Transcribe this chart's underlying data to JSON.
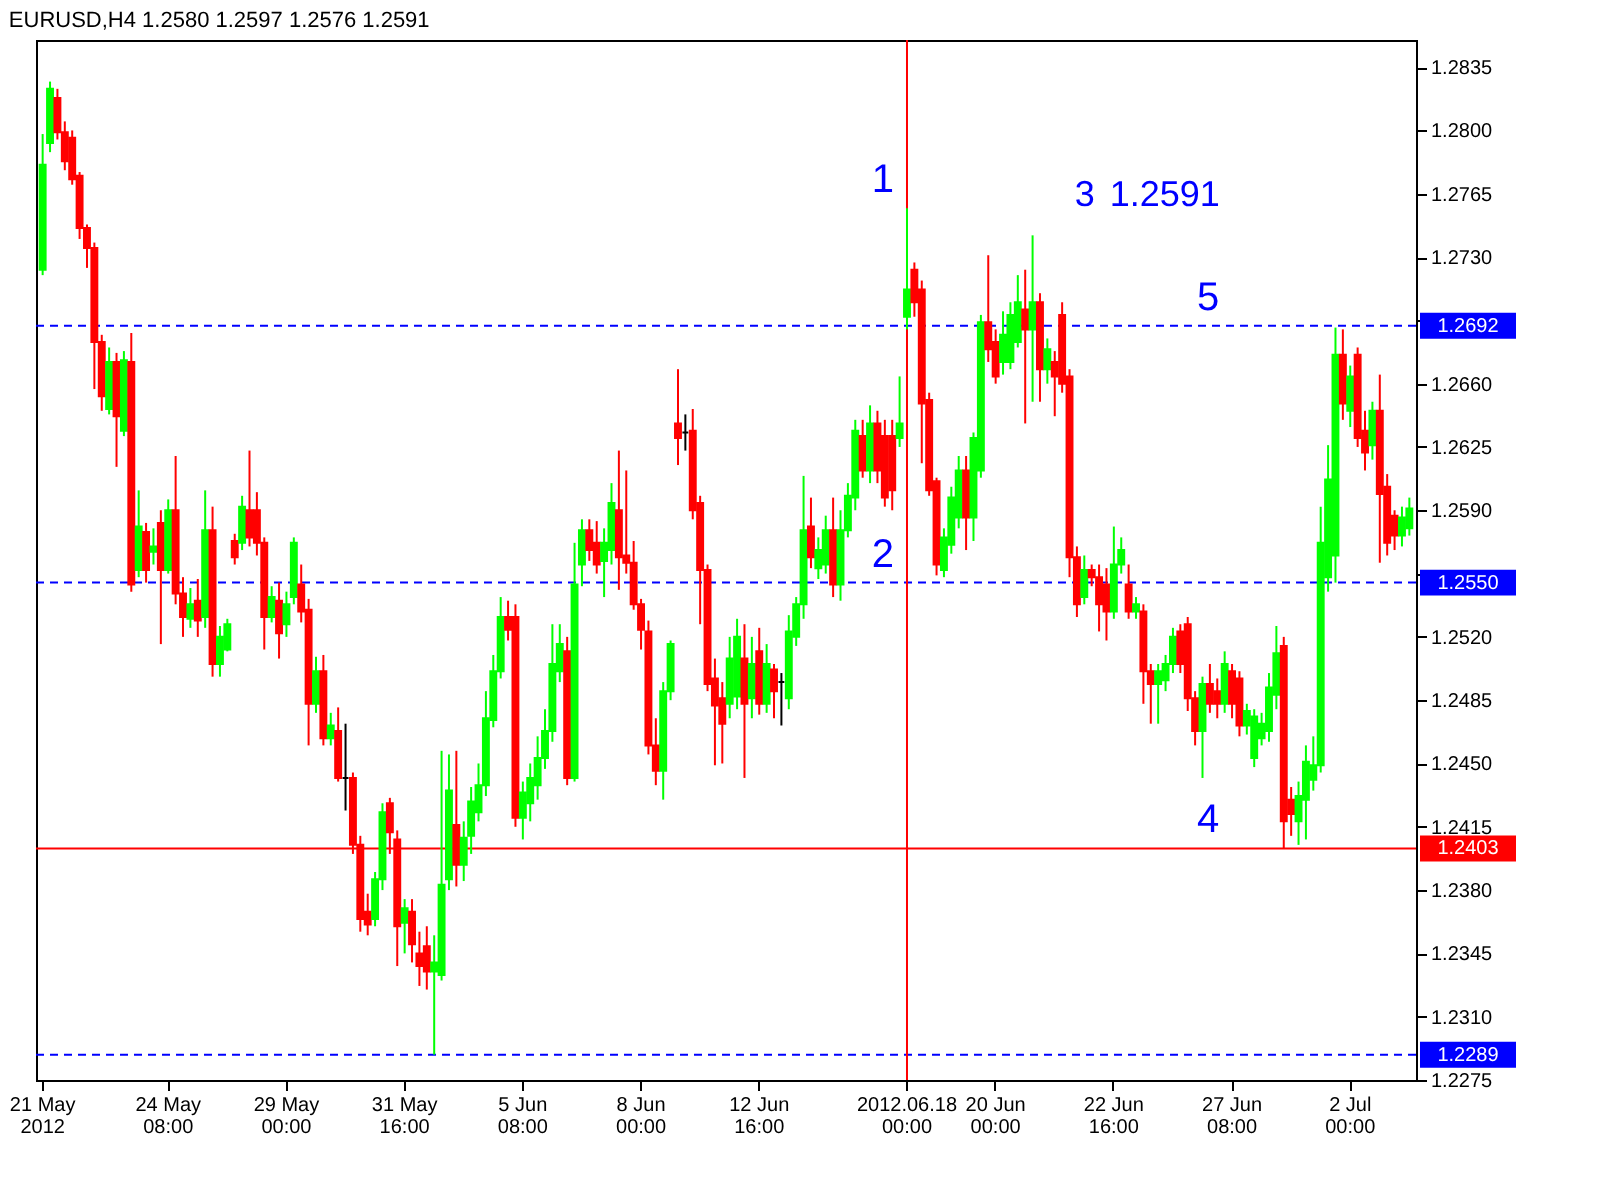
{
  "chart_data": {
    "type": "candlestick",
    "title": "EURUSD,H4 1.2580 1.2597 1.2576 1.2591",
    "categories": [
      "21 May 2012",
      null,
      null,
      null,
      null,
      null,
      null,
      null,
      null,
      null,
      null,
      null,
      null,
      null,
      null,
      null,
      null,
      "24 May 08:00",
      null,
      null,
      null,
      null,
      null,
      null,
      null,
      null,
      null,
      null,
      null,
      null,
      null,
      null,
      null,
      "29 May 00:00",
      null,
      null,
      null,
      null,
      null,
      null,
      null,
      null,
      null,
      null,
      null,
      null,
      null,
      null,
      null,
      "31 May 16:00",
      null,
      null,
      null,
      null,
      null,
      null,
      null,
      null,
      null,
      null,
      null,
      null,
      null,
      null,
      null,
      "5 Jun 08:00",
      null,
      null,
      null,
      null,
      null,
      null,
      null,
      null,
      null,
      null,
      null,
      null,
      null,
      null,
      null,
      "8 Jun 00:00",
      null,
      null,
      null,
      null,
      null,
      null,
      null,
      null,
      null,
      null,
      null,
      null,
      null,
      null,
      null,
      "12 Jun 16:00",
      null,
      null,
      null,
      null,
      null,
      null,
      null,
      null,
      null,
      null,
      null,
      null,
      null,
      null,
      null,
      null,
      null,
      null,
      null,
      "2012.06.18 00:00",
      null,
      null,
      null,
      null,
      null,
      null,
      null,
      null,
      null,
      null,
      null,
      "20 Jun 00:00",
      null,
      null,
      null,
      null,
      null,
      null,
      null,
      null,
      null,
      null,
      null,
      null,
      null,
      null,
      null,
      "22 Jun 16:00",
      null,
      null,
      null,
      null,
      null,
      null,
      null,
      null,
      null,
      null,
      null,
      null,
      null,
      null,
      null,
      "27 Jun 08:00",
      null,
      null,
      null,
      null,
      null,
      null,
      null,
      null,
      null,
      null,
      null,
      null,
      null,
      null,
      null,
      "2 Jul 00:00",
      null,
      null,
      null,
      null,
      null,
      null,
      null,
      null
    ],
    "ohlc": [
      [
        1.2723,
        1.2798,
        1.272,
        1.2781
      ],
      [
        1.2793,
        1.2827,
        1.2788,
        1.2823
      ],
      [
        1.2818,
        1.2823,
        1.2795,
        1.2799
      ],
      [
        1.2799,
        1.2805,
        1.2778,
        1.2783
      ],
      [
        1.2796,
        1.28,
        1.277,
        1.2773
      ],
      [
        1.2775,
        1.2777,
        1.274,
        1.2746
      ],
      [
        1.2746,
        1.2748,
        1.2724,
        1.2735
      ],
      [
        1.2735,
        1.2738,
        1.2657,
        1.2683
      ],
      [
        1.2683,
        1.2687,
        1.2645,
        1.2653
      ],
      [
        1.2646,
        1.268,
        1.2643,
        1.2672
      ],
      [
        1.2672,
        1.2677,
        1.2614,
        1.2642
      ],
      [
        1.2634,
        1.2678,
        1.2631,
        1.2673
      ],
      [
        1.2672,
        1.2688,
        1.2545,
        1.2549
      ],
      [
        1.2557,
        1.2601,
        1.2553,
        1.2581
      ],
      [
        1.2578,
        1.2583,
        1.255,
        1.2557
      ],
      [
        1.2567,
        1.258,
        1.256,
        1.257
      ],
      [
        1.2583,
        1.259,
        1.2516,
        1.2557
      ],
      [
        1.2557,
        1.2596,
        1.2555,
        1.259
      ],
      [
        1.259,
        1.262,
        1.2538,
        1.2544
      ],
      [
        1.2544,
        1.2553,
        1.252,
        1.2531
      ],
      [
        1.253,
        1.2547,
        1.2525,
        1.2538
      ],
      [
        1.254,
        1.2552,
        1.252,
        1.2529
      ],
      [
        1.2531,
        1.2601,
        1.2525,
        1.2579
      ],
      [
        1.2579,
        1.2592,
        1.2498,
        1.2505
      ],
      [
        1.2505,
        1.2526,
        1.2498,
        1.252
      ],
      [
        1.2513,
        1.253,
        1.2512,
        1.2527
      ],
      [
        1.2573,
        1.2577,
        1.256,
        1.2564
      ],
      [
        1.2572,
        1.2598,
        1.2568,
        1.2592
      ],
      [
        1.259,
        1.2623,
        1.257,
        1.2575
      ],
      [
        1.259,
        1.26,
        1.2565,
        1.2572
      ],
      [
        1.2572,
        1.2575,
        1.2513,
        1.2531
      ],
      [
        1.2531,
        1.2548,
        1.2528,
        1.2542
      ],
      [
        1.254,
        1.255,
        1.2508,
        1.2522
      ],
      [
        1.2527,
        1.2545,
        1.252,
        1.2538
      ],
      [
        1.2542,
        1.2575,
        1.2538,
        1.2572
      ],
      [
        1.2549,
        1.256,
        1.2528,
        1.2534
      ],
      [
        1.2535,
        1.2541,
        1.246,
        1.2483
      ],
      [
        1.2483,
        1.2509,
        1.2478,
        1.2501
      ],
      [
        1.2501,
        1.251,
        1.246,
        1.2464
      ],
      [
        1.2464,
        1.2478,
        1.246,
        1.2471
      ],
      [
        1.2468,
        1.2481,
        1.244,
        1.2442
      ],
      [
        1.2442,
        1.2472,
        1.2424,
        1.2442
      ],
      [
        1.2442,
        1.2445,
        1.24,
        1.2405
      ],
      [
        1.2405,
        1.241,
        1.2357,
        1.2364
      ],
      [
        1.2368,
        1.2378,
        1.2355,
        1.2361
      ],
      [
        1.2364,
        1.239,
        1.236,
        1.2386
      ],
      [
        1.2386,
        1.2428,
        1.238,
        1.2423
      ],
      [
        1.2428,
        1.2431,
        1.24,
        1.2412
      ],
      [
        1.2408,
        1.2413,
        1.2338,
        1.236
      ],
      [
        1.2362,
        1.2375,
        1.2345,
        1.237
      ],
      [
        1.2368,
        1.2375,
        1.234,
        1.235
      ],
      [
        1.2345,
        1.2357,
        1.2327,
        1.2338
      ],
      [
        1.2349,
        1.236,
        1.2325,
        1.2335
      ],
      [
        1.2335,
        1.2355,
        1.2289,
        1.234
      ],
      [
        1.2333,
        1.2457,
        1.233,
        1.2383
      ],
      [
        1.2386,
        1.2455,
        1.238,
        1.2435
      ],
      [
        1.2416,
        1.2457,
        1.2382,
        1.2394
      ],
      [
        1.2394,
        1.2418,
        1.2385,
        1.2409
      ],
      [
        1.241,
        1.2437,
        1.24,
        1.2429
      ],
      [
        1.2423,
        1.245,
        1.2418,
        1.2438
      ],
      [
        1.2438,
        1.249,
        1.2432,
        1.2475
      ],
      [
        1.2474,
        1.251,
        1.247,
        1.2501
      ],
      [
        1.2501,
        1.2542,
        1.2497,
        1.2531
      ],
      [
        1.2531,
        1.254,
        1.2518,
        1.2524
      ],
      [
        1.2531,
        1.2538,
        1.2415,
        1.242
      ],
      [
        1.242,
        1.244,
        1.2408,
        1.2434
      ],
      [
        1.2428,
        1.245,
        1.2418,
        1.2442
      ],
      [
        1.2438,
        1.2465,
        1.243,
        1.2453
      ],
      [
        1.2453,
        1.248,
        1.2447,
        1.2468
      ],
      [
        1.2468,
        1.2527,
        1.2462,
        1.2505
      ],
      [
        1.2501,
        1.2527,
        1.2495,
        1.2516
      ],
      [
        1.2512,
        1.252,
        1.2438,
        1.2442
      ],
      [
        1.2442,
        1.2572,
        1.244,
        1.2549
      ],
      [
        1.256,
        1.2585,
        1.2548,
        1.2579
      ],
      [
        1.2579,
        1.2585,
        1.2562,
        1.2568
      ],
      [
        1.2572,
        1.2584,
        1.2555,
        1.256
      ],
      [
        1.2562,
        1.258,
        1.2542,
        1.2572
      ],
      [
        1.2568,
        1.2605,
        1.256,
        1.2594
      ],
      [
        1.259,
        1.2623,
        1.2546,
        1.2564
      ],
      [
        1.2565,
        1.2612,
        1.2555,
        1.2561
      ],
      [
        1.2561,
        1.2573,
        1.2535,
        1.2538
      ],
      [
        1.2538,
        1.2541,
        1.2513,
        1.2524
      ],
      [
        1.2523,
        1.2529,
        1.2455,
        1.246
      ],
      [
        1.246,
        1.2475,
        1.2438,
        1.2446
      ],
      [
        1.2446,
        1.2495,
        1.243,
        1.249
      ],
      [
        1.249,
        1.2518,
        1.2485,
        1.2516
      ],
      [
        1.2638,
        1.2668,
        1.2615,
        1.263
      ],
      [
        1.2633,
        1.2643,
        1.2623,
        1.2633
      ],
      [
        1.2634,
        1.2646,
        1.2585,
        1.259
      ],
      [
        1.2594,
        1.2598,
        1.2527,
        1.2557
      ],
      [
        1.2557,
        1.256,
        1.249,
        1.2494
      ],
      [
        1.2497,
        1.2508,
        1.2449,
        1.2482
      ],
      [
        1.2486,
        1.2495,
        1.245,
        1.2472
      ],
      [
        1.2483,
        1.252,
        1.2475,
        1.2508
      ],
      [
        1.2487,
        1.253,
        1.248,
        1.252
      ],
      [
        1.2508,
        1.2527,
        1.2442,
        1.2483
      ],
      [
        1.2486,
        1.252,
        1.2475,
        1.2505
      ],
      [
        1.2512,
        1.2525,
        1.2477,
        1.2483
      ],
      [
        1.2483,
        1.2516,
        1.2478,
        1.2505
      ],
      [
        1.2502,
        1.2505,
        1.2475,
        1.249
      ],
      [
        1.2495,
        1.25,
        1.2471,
        1.2495
      ],
      [
        1.2486,
        1.2532,
        1.248,
        1.2523
      ],
      [
        1.252,
        1.2542,
        1.2515,
        1.2538
      ],
      [
        1.2538,
        1.2609,
        1.253,
        1.2579
      ],
      [
        1.2581,
        1.2597,
        1.2558,
        1.2564
      ],
      [
        1.2558,
        1.2575,
        1.2552,
        1.2568
      ],
      [
        1.256,
        1.2587,
        1.2555,
        1.2579
      ],
      [
        1.2579,
        1.2597,
        1.2542,
        1.2549
      ],
      [
        1.2549,
        1.259,
        1.254,
        1.2579
      ],
      [
        1.2579,
        1.2605,
        1.2575,
        1.2598
      ],
      [
        1.2597,
        1.264,
        1.259,
        1.2634
      ],
      [
        1.2631,
        1.264,
        1.2608,
        1.2612
      ],
      [
        1.2612,
        1.2648,
        1.2605,
        1.2638
      ],
      [
        1.2638,
        1.2645,
        1.2605,
        1.2612
      ],
      [
        1.2631,
        1.264,
        1.2592,
        1.2597
      ],
      [
        1.2631,
        1.264,
        1.259,
        1.2601
      ],
      [
        1.263,
        1.2664,
        1.2625,
        1.2638
      ],
      [
        1.2697,
        1.2757,
        1.269,
        1.2712
      ],
      [
        1.2723,
        1.2727,
        1.2697,
        1.2705
      ],
      [
        1.2712,
        1.2717,
        1.2616,
        1.2649
      ],
      [
        1.2651,
        1.2655,
        1.2598,
        1.2601
      ],
      [
        1.2606,
        1.2608,
        1.2554,
        1.256
      ],
      [
        1.2557,
        1.258,
        1.2553,
        1.2575
      ],
      [
        1.2571,
        1.2603,
        1.2566,
        1.2597
      ],
      [
        1.2586,
        1.262,
        1.258,
        1.2612
      ],
      [
        1.2612,
        1.262,
        1.2568,
        1.2586
      ],
      [
        1.2586,
        1.2633,
        1.2573,
        1.263
      ],
      [
        1.2612,
        1.2698,
        1.2608,
        1.2694
      ],
      [
        1.2694,
        1.2731,
        1.2672,
        1.2679
      ],
      [
        1.2683,
        1.269,
        1.266,
        1.2664
      ],
      [
        1.2672,
        1.27,
        1.2665,
        1.2687
      ],
      [
        1.2672,
        1.2705,
        1.2668,
        1.2698
      ],
      [
        1.2683,
        1.272,
        1.268,
        1.2705
      ],
      [
        1.2701,
        1.2723,
        1.2638,
        1.269
      ],
      [
        1.269,
        1.2742,
        1.265,
        1.2705
      ],
      [
        1.2705,
        1.271,
        1.265,
        1.2668
      ],
      [
        1.2668,
        1.2685,
        1.266,
        1.2679
      ],
      [
        1.2672,
        1.2678,
        1.2642,
        1.2664
      ],
      [
        1.2698,
        1.2705,
        1.2655,
        1.266
      ],
      [
        1.2664,
        1.2668,
        1.2553,
        1.2564
      ],
      [
        1.2564,
        1.257,
        1.2531,
        1.2538
      ],
      [
        1.2542,
        1.2565,
        1.2538,
        1.2557
      ],
      [
        1.2557,
        1.256,
        1.2548,
        1.2553
      ],
      [
        1.2553,
        1.256,
        1.2523,
        1.2538
      ],
      [
        1.2549,
        1.2558,
        1.2518,
        1.2534
      ],
      [
        1.2534,
        1.2581,
        1.253,
        1.256
      ],
      [
        1.256,
        1.2575,
        1.2555,
        1.2568
      ],
      [
        1.2549,
        1.256,
        1.253,
        1.2534
      ],
      [
        1.2534,
        1.2542,
        1.253,
        1.2538
      ],
      [
        1.2534,
        1.2538,
        1.2483,
        1.2501
      ],
      [
        1.2501,
        1.2505,
        1.2472,
        1.2494
      ],
      [
        1.2494,
        1.2505,
        1.2472,
        1.2501
      ],
      [
        1.2496,
        1.251,
        1.249,
        1.2505
      ],
      [
        1.2505,
        1.2525,
        1.25,
        1.252
      ],
      [
        1.2523,
        1.2527,
        1.25,
        1.2505
      ],
      [
        1.2527,
        1.2531,
        1.2479,
        1.2486
      ],
      [
        1.2486,
        1.249,
        1.246,
        1.2468
      ],
      [
        1.2468,
        1.2498,
        1.2442,
        1.2494
      ],
      [
        1.2494,
        1.2505,
        1.2478,
        1.2483
      ],
      [
        1.249,
        1.2497,
        1.2475,
        1.2483
      ],
      [
        1.2483,
        1.2512,
        1.2478,
        1.2505
      ],
      [
        1.2501,
        1.2505,
        1.2475,
        1.2483
      ],
      [
        1.2497,
        1.2501,
        1.2465,
        1.2471
      ],
      [
        1.2471,
        1.2483,
        1.2466,
        1.2479
      ],
      [
        1.2453,
        1.248,
        1.2448,
        1.2476
      ],
      [
        1.2464,
        1.2478,
        1.246,
        1.2472
      ],
      [
        1.2468,
        1.25,
        1.2462,
        1.2492
      ],
      [
        1.2488,
        1.2526,
        1.248,
        1.2511
      ],
      [
        1.2515,
        1.252,
        1.2403,
        1.2418
      ],
      [
        1.243,
        1.2437,
        1.241,
        1.2422
      ],
      [
        1.2418,
        1.244,
        1.2405,
        1.2432
      ],
      [
        1.243,
        1.246,
        1.2408,
        1.2451
      ],
      [
        1.2441,
        1.2465,
        1.2435,
        1.2449
      ],
      [
        1.2449,
        1.2592,
        1.2445,
        1.2572
      ],
      [
        1.2553,
        1.2626,
        1.2545,
        1.2607
      ],
      [
        1.2565,
        1.2691,
        1.255,
        1.2676
      ],
      [
        1.2676,
        1.269,
        1.264,
        1.2649
      ],
      [
        1.2645,
        1.267,
        1.2636,
        1.2664
      ],
      [
        1.2676,
        1.268,
        1.2625,
        1.263
      ],
      [
        1.2634,
        1.2645,
        1.2612,
        1.2622
      ],
      [
        1.2626,
        1.265,
        1.2618,
        1.2645
      ],
      [
        1.2645,
        1.2665,
        1.2561,
        1.2599
      ],
      [
        1.2603,
        1.261,
        1.2565,
        1.2572
      ],
      [
        1.2587,
        1.259,
        1.2568,
        1.2576
      ],
      [
        1.2576,
        1.2592,
        1.257,
        1.2586
      ],
      [
        1.258,
        1.2597,
        1.2576,
        1.2591
      ]
    ],
    "colors": [
      "#00ff00",
      "#00ff00",
      "#ff0000",
      "#ff0000",
      "#ff0000",
      "#ff0000",
      "#ff0000",
      "#ff0000",
      "#ff0000",
      "#00ff00",
      "#ff0000",
      "#00ff00",
      "#ff0000",
      "#00ff00",
      "#ff0000",
      "#00ff00",
      "#ff0000",
      "#00ff00",
      "#ff0000",
      "#ff0000",
      "#00ff00",
      "#ff0000",
      "#00ff00",
      "#ff0000",
      "#00ff00",
      "#00ff00",
      "#ff0000",
      "#00ff00",
      "#ff0000",
      "#ff0000",
      "#ff0000",
      "#00ff00",
      "#ff0000",
      "#00ff00",
      "#00ff00",
      "#ff0000",
      "#ff0000",
      "#00ff00",
      "#ff0000",
      "#00ff00",
      "#ff0000",
      "#000000",
      "#ff0000",
      "#ff0000",
      "#ff0000",
      "#00ff00",
      "#00ff00",
      "#ff0000",
      "#ff0000",
      "#00ff00",
      "#ff0000",
      "#ff0000",
      "#ff0000",
      "#00ff00",
      "#00ff00",
      "#00ff00",
      "#ff0000",
      "#00ff00",
      "#00ff00",
      "#00ff00",
      "#00ff00",
      "#00ff00",
      "#00ff00",
      "#ff0000",
      "#ff0000",
      "#00ff00",
      "#00ff00",
      "#00ff00",
      "#00ff00",
      "#00ff00",
      "#00ff00",
      "#ff0000",
      "#00ff00",
      "#00ff00",
      "#ff0000",
      "#ff0000",
      "#00ff00",
      "#00ff00",
      "#ff0000",
      "#ff0000",
      "#ff0000",
      "#ff0000",
      "#ff0000",
      "#ff0000",
      "#00ff00",
      "#00ff00",
      "#ff0000",
      "#000000",
      "#ff0000",
      "#ff0000",
      "#ff0000",
      "#ff0000",
      "#ff0000",
      "#00ff00",
      "#00ff00",
      "#ff0000",
      "#00ff00",
      "#ff0000",
      "#00ff00",
      "#ff0000",
      "#000000",
      "#00ff00",
      "#00ff00",
      "#00ff00",
      "#ff0000",
      "#00ff00",
      "#00ff00",
      "#ff0000",
      "#00ff00",
      "#00ff00",
      "#00ff00",
      "#ff0000",
      "#00ff00",
      "#ff0000",
      "#ff0000",
      "#ff0000",
      "#00ff00",
      "#00ff00",
      "#ff0000",
      "#ff0000",
      "#ff0000",
      "#ff0000",
      "#00ff00",
      "#00ff00",
      "#00ff00",
      "#ff0000",
      "#00ff00",
      "#00ff00",
      "#ff0000",
      "#ff0000",
      "#00ff00",
      "#00ff00",
      "#00ff00",
      "#ff0000",
      "#00ff00",
      "#ff0000",
      "#00ff00",
      "#ff0000",
      "#ff0000",
      "#ff0000",
      "#ff0000",
      "#00ff00",
      "#ff0000",
      "#ff0000",
      "#ff0000",
      "#00ff00",
      "#00ff00",
      "#ff0000",
      "#00ff00",
      "#ff0000",
      "#ff0000",
      "#00ff00",
      "#00ff00",
      "#00ff00",
      "#ff0000",
      "#ff0000",
      "#ff0000",
      "#00ff00",
      "#ff0000",
      "#ff0000",
      "#00ff00",
      "#ff0000",
      "#ff0000",
      "#00ff00",
      "#00ff00",
      "#00ff00",
      "#00ff00",
      "#00ff00",
      "#ff0000",
      "#ff0000",
      "#00ff00",
      "#00ff00",
      "#00ff00",
      "#00ff00",
      "#00ff00",
      "#00ff00",
      "#ff0000",
      "#00ff00",
      "#ff0000",
      "#ff0000",
      "#00ff00",
      "#ff0000",
      "#ff0000",
      "#ff0000",
      "#00ff00",
      "#00ff00"
    ],
    "ylim": [
      1.2275,
      1.285
    ],
    "yticks": [
      1.2275,
      {
        "value": 1.231,
        "label": "1.2310"
      },
      1.2345,
      {
        "value": 1.238,
        "label": "1.2380"
      },
      1.2415,
      {
        "value": 1.245,
        "label": "1.2450"
      },
      1.2485,
      {
        "value": 1.252,
        "label": "1.2520"
      },
      {
        "value": 1.2555,
        "label": null
      },
      {
        "value": 1.259,
        "label": "1.2590"
      },
      1.2625,
      {
        "value": 1.266,
        "label": "1.2660"
      },
      {
        "value": 1.2695,
        "label": null
      },
      {
        "value": 1.273,
        "label": "1.2730"
      },
      1.2765,
      {
        "value": 1.28,
        "label": "1.2800"
      },
      1.2835
    ],
    "ref_lines": [
      {
        "axis": "y",
        "value": 1.2692,
        "label": "1.2692",
        "color": "#0000ff",
        "line_style": "dashed"
      },
      {
        "axis": "y",
        "value": 1.255,
        "label": "1.2550",
        "color": "#0000ff",
        "line_style": "dashed"
      },
      {
        "axis": "y",
        "value": 1.2403,
        "label": "1.2403",
        "color": "#ff0000",
        "line_style": "solid"
      },
      {
        "axis": "y",
        "value": 1.2289,
        "label": "1.2289",
        "color": "#0000ff",
        "line_style": "dashed"
      },
      {
        "axis": "x",
        "value": "2012.06.18 00:00",
        "color": "#ff0000",
        "line_style": "solid"
      }
    ],
    "annotations": [
      {
        "text": "1",
        "x": "2012.06.18 00:00",
        "y": 1.2757
      },
      {
        "text": "2",
        "x": "2012.06.18 00:00",
        "y": 1.255
      },
      "3",
      {
        "text": "4",
        "x": "27 Jun 08:00",
        "y": 1.2403
      },
      {
        "text": "5",
        "x": "27 Jun 08:00",
        "y": 1.2692
      },
      "1.2591"
    ]
  }
}
